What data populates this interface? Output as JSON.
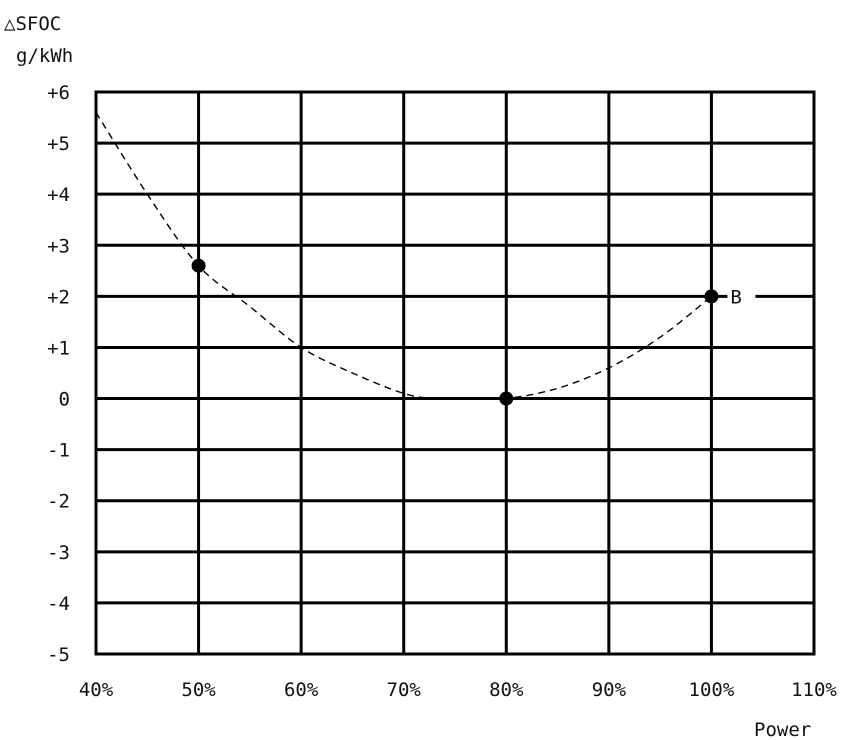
{
  "chart_data": {
    "type": "line",
    "ylabel_line1": "△SFOC",
    "ylabel_line2": "g/kWh",
    "xlabel": "Power",
    "x_ticks": [
      "40%",
      "50%",
      "60%",
      "70%",
      "80%",
      "90%",
      "100%",
      "110%"
    ],
    "y_ticks": [
      "+6",
      "+5",
      "+4",
      "+3",
      "+2",
      "+1",
      "0",
      "-1",
      "-2",
      "-3",
      "-4",
      "-5"
    ],
    "xlim": [
      40,
      110
    ],
    "ylim": [
      -5,
      6
    ],
    "grid": true,
    "series": [
      {
        "line_style": "dashed",
        "x": [
          40,
          45,
          50,
          55,
          60,
          65,
          70,
          73,
          76,
          80,
          85,
          90,
          95,
          100
        ],
        "y": [
          5.6,
          4.0,
          2.6,
          1.8,
          1.0,
          0.5,
          0.1,
          0.0,
          0.0,
          0.0,
          0.2,
          0.6,
          1.2,
          2.0
        ]
      }
    ],
    "points": [
      {
        "x": 50,
        "y": 2.6
      },
      {
        "x": 80,
        "y": 0
      },
      {
        "x": 100,
        "y": 2.0,
        "label": "B"
      }
    ]
  }
}
